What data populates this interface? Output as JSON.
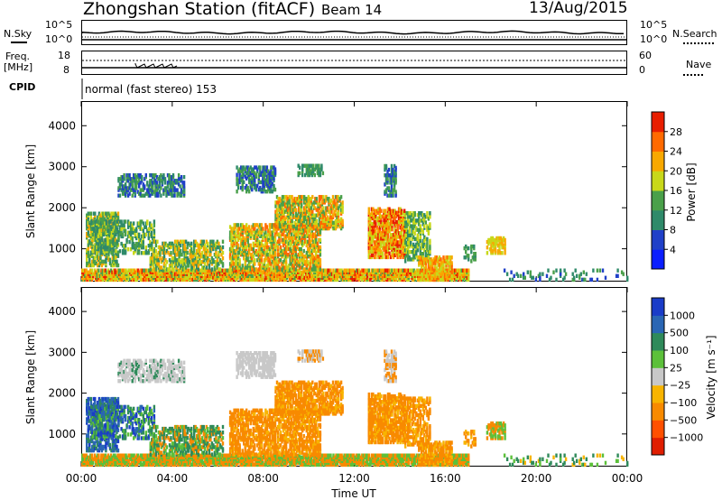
{
  "header": {
    "station_title": "Zhongshan Station (fitACF)",
    "beam_label": "Beam 14",
    "date_label": "13/Aug/2015"
  },
  "top_panels": {
    "nsky": {
      "label": "N.Sky",
      "tick_top": "10^5",
      "tick_bottom": "10^0"
    },
    "nsearch": {
      "label": "N.Search",
      "tick_top": "10^5",
      "tick_bottom": "10^0"
    },
    "freq": {
      "label_line1": "Freq.",
      "label_line2": "[MHz]",
      "tick_top": "18",
      "tick_bottom": "8"
    },
    "nave": {
      "label": "Nave",
      "tick_top": "60",
      "tick_bottom": "0"
    },
    "cpid": {
      "label": "CPID",
      "text": "normal (fast stereo) 153"
    }
  },
  "chart_data": [
    {
      "type": "heatmap",
      "title": "",
      "xlabel": "",
      "ylabel": "Slant Range [km]",
      "x_ticks": [
        "00:00",
        "04:00",
        "08:00",
        "12:00",
        "16:00",
        "20:00",
        "00:00"
      ],
      "y_ticks": [
        1000,
        2000,
        3000,
        4000
      ],
      "xlim_hours": [
        0,
        24
      ],
      "ylim_km": [
        200,
        4600
      ],
      "colorbar": {
        "label": "Power [dB]",
        "ticks": [
          4,
          8,
          12,
          16,
          20,
          24,
          28
        ],
        "colors": [
          "#0a1eff",
          "#2040c8",
          "#2f8a6a",
          "#4aa04a",
          "#c8d81a",
          "#f8a800",
          "#ff6a00",
          "#e81e00"
        ]
      }
    },
    {
      "type": "heatmap",
      "title": "",
      "xlabel": "Time UT",
      "ylabel": "Slant Range [km]",
      "x_ticks": [
        "00:00",
        "04:00",
        "08:00",
        "12:00",
        "16:00",
        "20:00",
        "00:00"
      ],
      "y_ticks": [
        1000,
        2000,
        3000,
        4000
      ],
      "xlim_hours": [
        0,
        24
      ],
      "ylim_km": [
        200,
        4600
      ],
      "colorbar": {
        "label": "Velocity [m s⁻¹]",
        "ticks": [
          "1000",
          "500",
          "100",
          "25",
          "−25",
          "−100",
          "−500",
          "−1000"
        ],
        "colors": [
          "#1a3cc8",
          "#2a66b4",
          "#2f8a5a",
          "#5cc03a",
          "#c8c8c8",
          "#f8b400",
          "#f88a00",
          "#ff5000",
          "#e01e00"
        ]
      }
    }
  ]
}
